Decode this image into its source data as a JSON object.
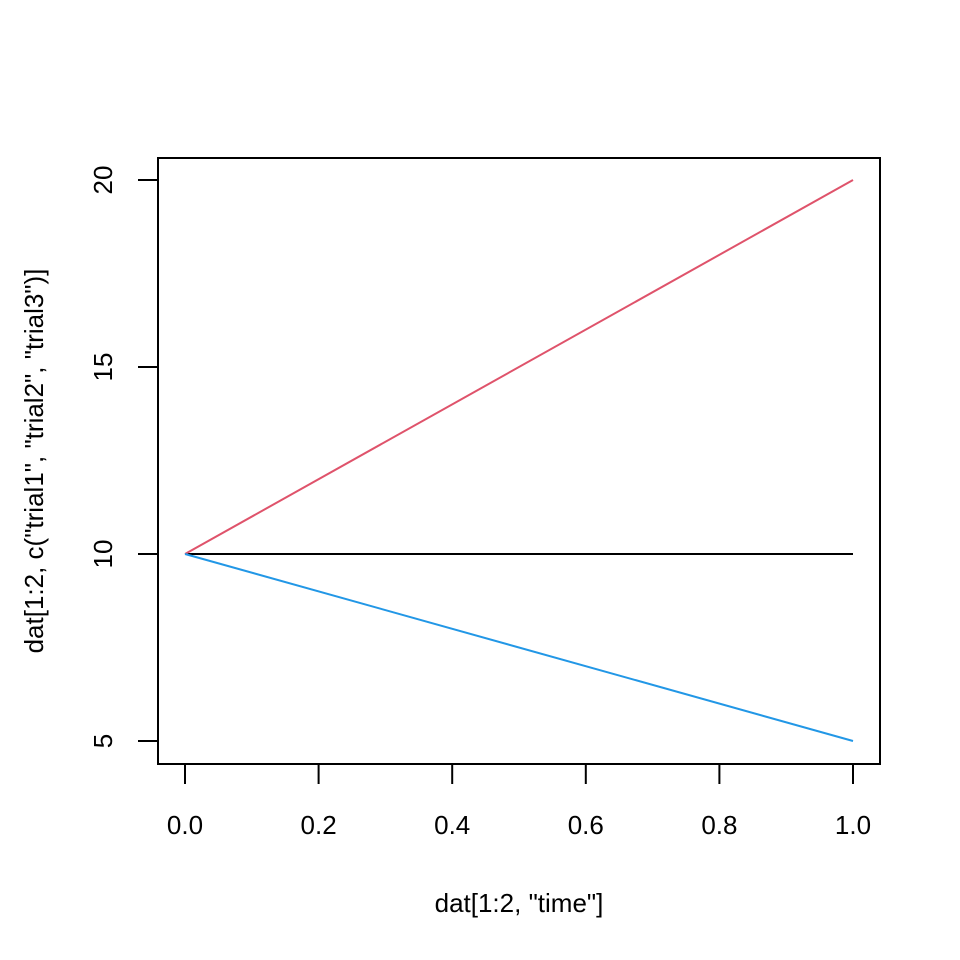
{
  "chart_data": {
    "type": "line",
    "title": "",
    "xlabel": "dat[1:2, \"time\"]",
    "ylabel": "dat[1:2, c(\"trial1\", \"trial2\", \"trial3\")]",
    "xlim": [
      0.0,
      1.0
    ],
    "ylim": [
      5,
      20
    ],
    "xticks": [
      "0.0",
      "0.2",
      "0.4",
      "0.6",
      "0.8",
      "1.0"
    ],
    "yticks": [
      "5",
      "10",
      "15",
      "20"
    ],
    "grid": false,
    "legend": "none",
    "x": [
      0,
      1
    ],
    "series": [
      {
        "values": [
          10,
          10
        ],
        "color": "#000000"
      },
      {
        "values": [
          10,
          20
        ],
        "color": "#DF536B"
      },
      {
        "values": [
          10,
          5
        ],
        "color": "#2297E6"
      }
    ]
  }
}
